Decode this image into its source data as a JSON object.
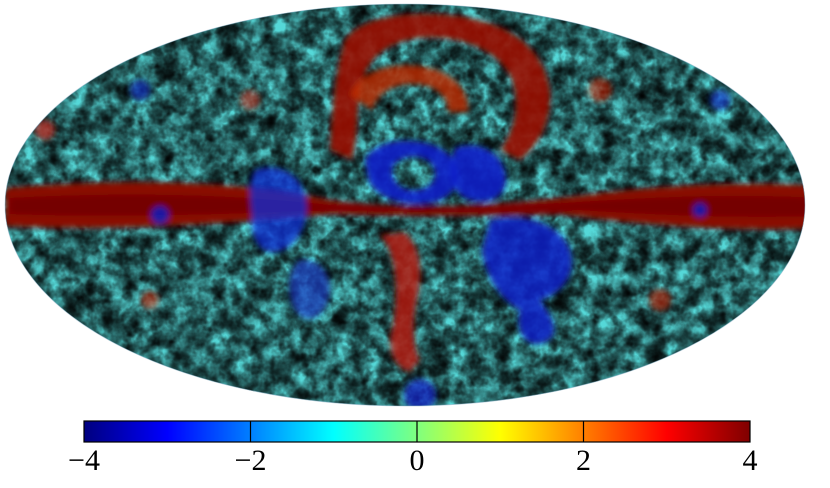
{
  "map": {
    "projection": "mollweide",
    "colormap": "jet",
    "colors": [
      "#00007f",
      "#0000ff",
      "#007fff",
      "#00ffff",
      "#7fff7f",
      "#ffff00",
      "#ff7f00",
      "#ff0000",
      "#7f0000"
    ]
  },
  "colorbar": {
    "range": [
      -4,
      4
    ],
    "tick_values": [
      -4,
      -2,
      0,
      2,
      4
    ],
    "tick_labels": [
      "−4",
      "−2",
      "0",
      "2",
      "4"
    ]
  }
}
